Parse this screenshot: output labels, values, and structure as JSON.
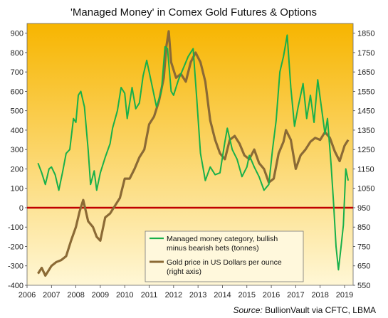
{
  "title": "'Managed Money' in Comex Gold Futures & Options",
  "source_label": "Source:",
  "source_text": "BullionVault via CFTC, LBMA",
  "colors": {
    "money": "#18b04a",
    "gold": "#8b6a35",
    "zero_line": "#c00000",
    "bg_top": "#f7b500",
    "bg_bottom": "#fff7d6"
  },
  "chart_data": {
    "type": "line",
    "x_ticks": [
      "2006",
      "2007",
      "2008",
      "2009",
      "2010",
      "2011",
      "2012",
      "2013",
      "2014",
      "2015",
      "2016",
      "2017",
      "2018",
      "2019"
    ],
    "y_left": {
      "range": [
        -400,
        950
      ],
      "ticks": [
        "900",
        "800",
        "700",
        "600",
        "500",
        "400",
        "300",
        "200",
        "100",
        "0",
        "-100",
        "-200",
        "-300",
        "-400"
      ],
      "tick_values": [
        900,
        800,
        700,
        600,
        500,
        400,
        300,
        200,
        100,
        0,
        -100,
        -200,
        -300,
        -400
      ]
    },
    "y_right": {
      "range": [
        550,
        1900
      ],
      "ticks": [
        "1850",
        "1750",
        "1650",
        "1550",
        "1450",
        "1350",
        "1250",
        "1150",
        "1050",
        "950",
        "850",
        "750",
        "650",
        "550"
      ],
      "tick_values": [
        1850,
        1750,
        1650,
        1550,
        1450,
        1350,
        1250,
        1150,
        1050,
        950,
        850,
        750,
        650,
        550
      ]
    },
    "zero_line_value": 0,
    "series": [
      {
        "name": "Managed money category, bullish minus bearish bets (tonnes)",
        "axis": "left",
        "x": [
          2006.45,
          2006.6,
          2006.75,
          2006.9,
          2007.0,
          2007.15,
          2007.3,
          2007.45,
          2007.6,
          2007.75,
          2007.9,
          2008.0,
          2008.1,
          2008.2,
          2008.35,
          2008.5,
          2008.6,
          2008.75,
          2008.85,
          2009.0,
          2009.2,
          2009.4,
          2009.5,
          2009.7,
          2009.85,
          2010.0,
          2010.1,
          2010.3,
          2010.45,
          2010.6,
          2010.75,
          2010.9,
          2011.0,
          2011.15,
          2011.3,
          2011.5,
          2011.65,
          2011.75,
          2011.9,
          2012.0,
          2012.2,
          2012.4,
          2012.6,
          2012.8,
          2012.95,
          2013.1,
          2013.3,
          2013.5,
          2013.7,
          2013.9,
          2014.1,
          2014.2,
          2014.4,
          2014.6,
          2014.8,
          2015.0,
          2015.1,
          2015.3,
          2015.5,
          2015.7,
          2015.9,
          2016.05,
          2016.2,
          2016.35,
          2016.5,
          2016.65,
          2016.8,
          2016.95,
          2017.1,
          2017.3,
          2017.45,
          2017.6,
          2017.75,
          2017.9,
          2018.05,
          2018.2,
          2018.3,
          2018.45,
          2018.55,
          2018.65,
          2018.75,
          2018.85,
          2018.95,
          2019.05,
          2019.15
        ],
        "y": [
          230,
          180,
          120,
          200,
          210,
          170,
          90,
          180,
          280,
          300,
          460,
          440,
          580,
          600,
          520,
          300,
          120,
          190,
          90,
          180,
          260,
          330,
          410,
          500,
          620,
          590,
          460,
          620,
          510,
          540,
          680,
          760,
          700,
          610,
          520,
          600,
          830,
          820,
          600,
          580,
          660,
          720,
          780,
          820,
          560,
          280,
          140,
          210,
          170,
          180,
          340,
          410,
          300,
          250,
          160,
          210,
          270,
          210,
          160,
          90,
          120,
          300,
          450,
          700,
          780,
          890,
          620,
          420,
          520,
          640,
          460,
          580,
          440,
          660,
          520,
          380,
          460,
          220,
          20,
          -200,
          -320,
          -210,
          -90,
          200,
          140
        ]
      },
      {
        "name": "Gold price in US Dollars per ounce (right axis)",
        "axis": "right",
        "x": [
          2006.45,
          2006.6,
          2006.75,
          2006.9,
          2007.0,
          2007.2,
          2007.4,
          2007.6,
          2007.8,
          2008.0,
          2008.15,
          2008.3,
          2008.5,
          2008.7,
          2008.85,
          2009.0,
          2009.2,
          2009.4,
          2009.6,
          2009.8,
          2010.0,
          2010.2,
          2010.4,
          2010.6,
          2010.8,
          2011.0,
          2011.2,
          2011.4,
          2011.6,
          2011.7,
          2011.8,
          2011.9,
          2012.1,
          2012.3,
          2012.5,
          2012.7,
          2012.9,
          2013.1,
          2013.3,
          2013.5,
          2013.7,
          2013.9,
          2014.1,
          2014.3,
          2014.5,
          2014.7,
          2014.9,
          2015.1,
          2015.3,
          2015.5,
          2015.7,
          2015.9,
          2016.1,
          2016.3,
          2016.5,
          2016.6,
          2016.8,
          2017.0,
          2017.2,
          2017.4,
          2017.6,
          2017.8,
          2018.0,
          2018.2,
          2018.4,
          2018.6,
          2018.8,
          2019.0,
          2019.15
        ],
        "y": [
          610,
          640,
          600,
          630,
          650,
          670,
          680,
          700,
          780,
          850,
          930,
          990,
          880,
          850,
          800,
          780,
          900,
          920,
          960,
          1000,
          1100,
          1100,
          1150,
          1210,
          1250,
          1380,
          1420,
          1500,
          1620,
          1780,
          1860,
          1700,
          1620,
          1640,
          1600,
          1700,
          1750,
          1700,
          1600,
          1400,
          1300,
          1230,
          1200,
          1300,
          1320,
          1280,
          1220,
          1200,
          1250,
          1180,
          1150,
          1080,
          1100,
          1230,
          1290,
          1350,
          1300,
          1150,
          1220,
          1250,
          1290,
          1310,
          1300,
          1340,
          1310,
          1240,
          1190,
          1270,
          1300
        ]
      }
    ],
    "legend": {
      "position": "bottom-center",
      "entries": [
        {
          "line1": "Managed money category, bullish",
          "line2": "minus bearish bets (tonnes)"
        },
        {
          "line1": "Gold price in US Dollars per ounce",
          "line2": "(right axis)"
        }
      ]
    },
    "grid": false
  }
}
